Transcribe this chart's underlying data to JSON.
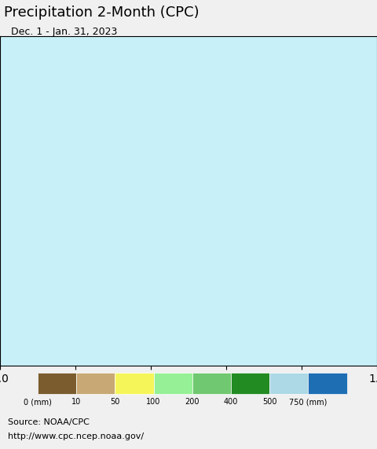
{
  "title": "Precipitation 2-Month (CPC)",
  "subtitle": "Dec. 1 - Jan. 31, 2023",
  "colorbar_labels": [
    "0 (mm)",
    "10",
    "50",
    "100",
    "200",
    "400",
    "500",
    "750 (mm)"
  ],
  "colorbar_colors": [
    "#7a5c2e",
    "#c8a875",
    "#f5f55a",
    "#96f096",
    "#70c870",
    "#228b22",
    "#add8e6",
    "#1e6eb4"
  ],
  "source_text": "Source: NOAA/CPC",
  "url_text": "http://www.cpc.ncep.noaa.gov/",
  "ocean_color": "#c8f0f8",
  "land_outside_color": "#e8e0dc",
  "background_color": "#f0f0f0",
  "title_fontsize": 13,
  "subtitle_fontsize": 9,
  "source_fontsize": 8,
  "extent": [
    57,
    107,
    4,
    43
  ]
}
